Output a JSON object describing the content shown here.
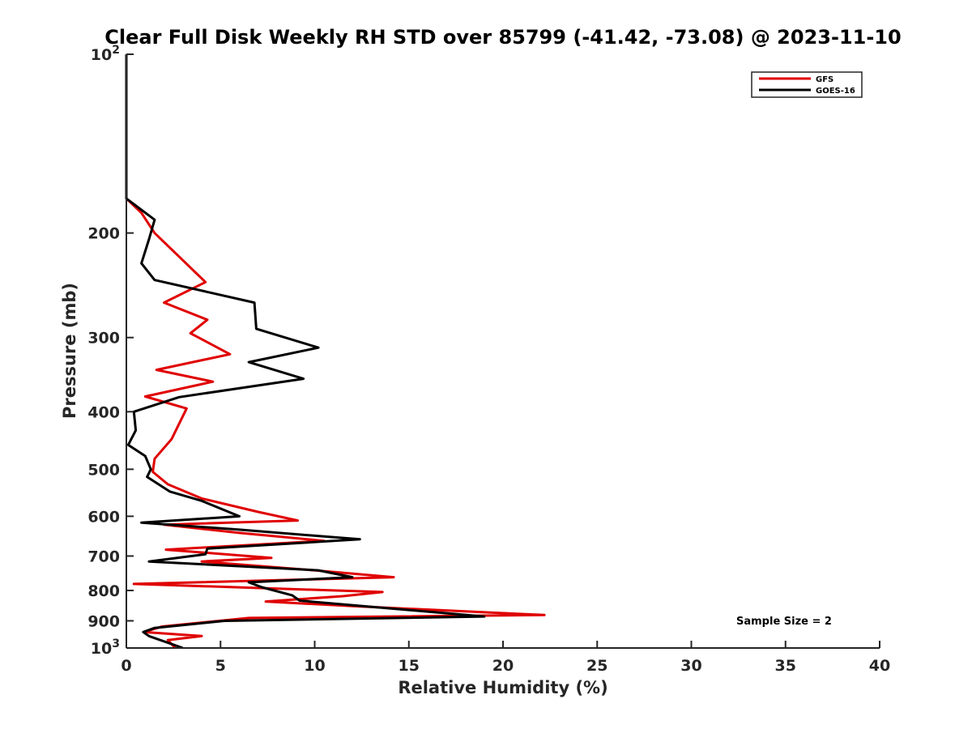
{
  "chart_data": {
    "type": "line",
    "title": "Clear Full Disk Weekly RH STD over 85799 (-41.42, -73.08) @ 2023-11-10",
    "xlabel": "Relative Humidity (%)",
    "ylabel": "Pressure (mb)",
    "xlim": [
      0,
      40
    ],
    "ylim": [
      100,
      1000
    ],
    "y_scale": "log",
    "y_reversed": true,
    "x_ticks": [
      "0",
      "5",
      "10",
      "15",
      "20",
      "25",
      "30",
      "35",
      "40"
    ],
    "y_ticks": [
      {
        "value": 100,
        "base": "10",
        "exp": "2"
      },
      {
        "value": 200,
        "label": "200"
      },
      {
        "value": 300,
        "label": "300"
      },
      {
        "value": 400,
        "label": "400"
      },
      {
        "value": 500,
        "label": "500"
      },
      {
        "value": 600,
        "label": "600"
      },
      {
        "value": 700,
        "label": "700"
      },
      {
        "value": 800,
        "label": "800"
      },
      {
        "value": 900,
        "label": "900"
      },
      {
        "value": 1000,
        "base": "10",
        "exp": "3"
      }
    ],
    "grid": false,
    "legend_position": "top-right",
    "annotation": "Sample Size = 2",
    "series": [
      {
        "name": "GFS",
        "color": "#e00000",
        "points": [
          [
            0.0,
            100
          ],
          [
            0.0,
            175
          ],
          [
            0.8,
            185
          ],
          [
            1.5,
            200
          ],
          [
            4.2,
            242
          ],
          [
            2.0,
            262
          ],
          [
            4.3,
            280
          ],
          [
            3.4,
            295
          ],
          [
            5.5,
            320
          ],
          [
            1.6,
            340
          ],
          [
            4.6,
            356
          ],
          [
            1.0,
            377
          ],
          [
            3.2,
            395
          ],
          [
            2.4,
            445
          ],
          [
            1.5,
            480
          ],
          [
            1.4,
            505
          ],
          [
            2.2,
            530
          ],
          [
            4.0,
            560
          ],
          [
            7.0,
            590
          ],
          [
            9.1,
            610
          ],
          [
            2.0,
            620
          ],
          [
            6.0,
            640
          ],
          [
            10.5,
            660
          ],
          [
            2.1,
            683
          ],
          [
            7.7,
            705
          ],
          [
            4.0,
            715
          ],
          [
            10.0,
            740
          ],
          [
            14.2,
            760
          ],
          [
            0.4,
            780
          ],
          [
            13.6,
            805
          ],
          [
            11.5,
            818
          ],
          [
            7.4,
            835
          ],
          [
            12.0,
            850
          ],
          [
            22.2,
            880
          ],
          [
            6.5,
            890
          ],
          [
            1.9,
            920
          ],
          [
            0.9,
            940
          ],
          [
            4.0,
            955
          ],
          [
            2.2,
            970
          ],
          [
            2.6,
            1000
          ]
        ]
      },
      {
        "name": "GOES-16",
        "color": "#000000",
        "points": [
          [
            0.0,
            100
          ],
          [
            0.0,
            175
          ],
          [
            1.5,
            190
          ],
          [
            1.2,
            205
          ],
          [
            0.8,
            225
          ],
          [
            1.5,
            240
          ],
          [
            6.8,
            262
          ],
          [
            6.9,
            290
          ],
          [
            10.2,
            312
          ],
          [
            6.5,
            330
          ],
          [
            9.4,
            352
          ],
          [
            2.8,
            378
          ],
          [
            0.4,
            400
          ],
          [
            0.5,
            430
          ],
          [
            0.1,
            455
          ],
          [
            1.0,
            475
          ],
          [
            1.3,
            500
          ],
          [
            1.1,
            515
          ],
          [
            2.3,
            545
          ],
          [
            4.0,
            565
          ],
          [
            6.0,
            600
          ],
          [
            0.8,
            615
          ],
          [
            6.0,
            632
          ],
          [
            12.4,
            656
          ],
          [
            4.3,
            680
          ],
          [
            4.2,
            695
          ],
          [
            1.2,
            715
          ],
          [
            10.2,
            740
          ],
          [
            12.0,
            760
          ],
          [
            6.5,
            775
          ],
          [
            7.2,
            790
          ],
          [
            8.8,
            815
          ],
          [
            9.2,
            832
          ],
          [
            19.0,
            885
          ],
          [
            5.2,
            900
          ],
          [
            1.5,
            925
          ],
          [
            0.9,
            940
          ],
          [
            1.2,
            955
          ],
          [
            3.0,
            1000
          ]
        ]
      }
    ]
  }
}
